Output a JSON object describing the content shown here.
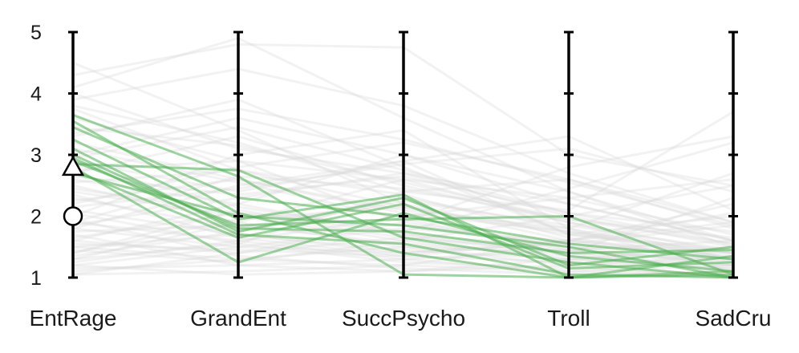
{
  "chart_data": {
    "type": "parallel-coordinates",
    "axes": [
      "EntRage",
      "GrandEnt",
      "SuccPsycho",
      "Troll",
      "SadCru"
    ],
    "y_ticks": [
      "1",
      "2",
      "3",
      "4",
      "5"
    ],
    "ylim": [
      1,
      5
    ],
    "colors": {
      "background_lines": "#d9d9d9",
      "highlight_lines": "#4caf50",
      "axis": "#000000"
    },
    "markers": [
      {
        "shape": "triangle",
        "axis": "EntRage",
        "value": 2.8
      },
      {
        "shape": "circle",
        "axis": "EntRage",
        "value": 2.0
      }
    ],
    "highlighted_profiles": [
      [
        3.65,
        2.65,
        1.05,
        1.0,
        1.1
      ],
      [
        3.45,
        2.3,
        2.0,
        1.55,
        1.3
      ],
      [
        3.25,
        1.95,
        2.35,
        1.0,
        1.05
      ],
      [
        3.0,
        1.8,
        1.75,
        1.4,
        1.45
      ],
      [
        2.95,
        1.7,
        1.55,
        1.05,
        1.0
      ],
      [
        2.9,
        1.85,
        1.95,
        2.0,
        1.05
      ],
      [
        2.85,
        2.75,
        1.65,
        1.25,
        1.0
      ],
      [
        2.8,
        1.25,
        2.05,
        1.35,
        1.1
      ],
      [
        2.75,
        1.65,
        2.2,
        1.15,
        1.25
      ],
      [
        2.7,
        2.0,
        1.85,
        1.5,
        1.0
      ],
      [
        3.55,
        2.05,
        1.4,
        1.0,
        1.35
      ],
      [
        3.1,
        1.75,
        2.3,
        1.2,
        1.5
      ]
    ],
    "background_profiles": [
      [
        1.2,
        1.5,
        1.8,
        1.6,
        1.4
      ],
      [
        1.5,
        1.3,
        1.2,
        1.1,
        1.0
      ],
      [
        2.1,
        1.7,
        1.4,
        1.6,
        1.9
      ],
      [
        4.3,
        4.8,
        4.75,
        3.0,
        2.5
      ],
      [
        1.8,
        2.5,
        2.9,
        1.7,
        1.4
      ],
      [
        2.4,
        2.0,
        1.6,
        1.3,
        1.2
      ],
      [
        1.05,
        1.1,
        1.2,
        1.6,
        2.2
      ],
      [
        3.8,
        3.2,
        2.4,
        2.1,
        3.7
      ],
      [
        1.3,
        1.9,
        2.6,
        1.9,
        1.3
      ],
      [
        2.0,
        3.0,
        3.4,
        1.8,
        1.1
      ],
      [
        4.1,
        4.9,
        3.6,
        2.4,
        1.6
      ],
      [
        1.6,
        1.4,
        1.9,
        2.8,
        3.3
      ],
      [
        2.6,
        2.2,
        1.7,
        1.5,
        1.4
      ],
      [
        1.1,
        1.3,
        1.5,
        1.2,
        1.0
      ],
      [
        3.3,
        3.9,
        2.8,
        1.7,
        2.0
      ],
      [
        1.9,
        1.6,
        1.3,
        1.1,
        1.2
      ],
      [
        2.2,
        2.8,
        3.2,
        2.6,
        1.8
      ],
      [
        4.5,
        3.4,
        2.2,
        1.6,
        1.3
      ],
      [
        1.4,
        2.1,
        1.7,
        1.4,
        1.1
      ],
      [
        2.9,
        2.4,
        2.9,
        3.3,
        2.1
      ],
      [
        1.7,
        1.2,
        1.1,
        1.3,
        1.5
      ],
      [
        3.6,
        2.9,
        1.9,
        1.5,
        1.2
      ],
      [
        2.3,
        1.8,
        2.3,
        1.8,
        2.7
      ],
      [
        1.25,
        1.6,
        2.0,
        2.3,
        1.7
      ],
      [
        3.0,
        3.6,
        3.0,
        2.2,
        1.6
      ],
      [
        1.55,
        1.45,
        1.35,
        1.25,
        1.15
      ],
      [
        2.7,
        3.3,
        2.5,
        1.9,
        1.4
      ],
      [
        4.0,
        3.1,
        2.7,
        2.0,
        1.5
      ],
      [
        1.35,
        1.75,
        2.25,
        1.85,
        1.45
      ],
      [
        2.5,
        1.9,
        1.5,
        1.4,
        2.3
      ],
      [
        1.15,
        1.2,
        1.3,
        1.45,
        1.6
      ],
      [
        3.2,
        2.6,
        2.1,
        1.8,
        1.3
      ],
      [
        1.85,
        2.3,
        2.7,
        2.2,
        1.6
      ],
      [
        2.05,
        1.55,
        1.25,
        1.15,
        1.05
      ],
      [
        3.9,
        4.4,
        3.8,
        2.7,
        1.9
      ],
      [
        1.45,
        1.25,
        1.6,
        2.0,
        2.5
      ],
      [
        2.55,
        2.75,
        2.35,
        1.65,
        1.25
      ],
      [
        1.65,
        2.05,
        1.85,
        1.55,
        1.35
      ],
      [
        2.85,
        2.15,
        1.75,
        2.45,
        3.2
      ],
      [
        1.95,
        1.35,
        1.15,
        1.05,
        1.1
      ],
      [
        3.45,
        3.15,
        2.55,
        1.95,
        1.55
      ],
      [
        1.3,
        1.55,
        2.4,
        2.6,
        1.9
      ],
      [
        2.25,
        2.6,
        2.05,
        1.75,
        1.3
      ],
      [
        1.75,
        1.85,
        1.55,
        1.35,
        1.2
      ],
      [
        2.65,
        2.35,
        2.65,
        2.05,
        1.75
      ],
      [
        1.05,
        1.4,
        1.65,
        1.45,
        1.25
      ],
      [
        3.75,
        2.75,
        2.15,
        1.7,
        1.45
      ],
      [
        2.15,
        2.45,
        2.85,
        3.1,
        2.4
      ],
      [
        1.5,
        1.7,
        1.45,
        1.3,
        1.15
      ],
      [
        2.95,
        3.45,
        2.75,
        2.05,
        1.55
      ],
      [
        1.2,
        1.05,
        1.1,
        1.2,
        1.35
      ],
      [
        2.35,
        1.65,
        1.35,
        1.6,
        2.05
      ],
      [
        1.6,
        2.2,
        3.0,
        2.4,
        1.5
      ],
      [
        3.1,
        2.55,
        1.95,
        1.45,
        1.2
      ],
      [
        1.9,
        2.65,
        2.45,
        1.95,
        1.65
      ],
      [
        2.45,
        2.05,
        1.65,
        1.4,
        1.3
      ],
      [
        1.4,
        1.95,
        2.15,
        1.75,
        1.4
      ],
      [
        3.35,
        3.75,
        3.25,
        2.55,
        1.85
      ],
      [
        1.8,
        1.5,
        1.4,
        1.55,
        1.85
      ],
      [
        2.75,
        2.9,
        2.6,
        2.3,
        2.6
      ]
    ]
  }
}
